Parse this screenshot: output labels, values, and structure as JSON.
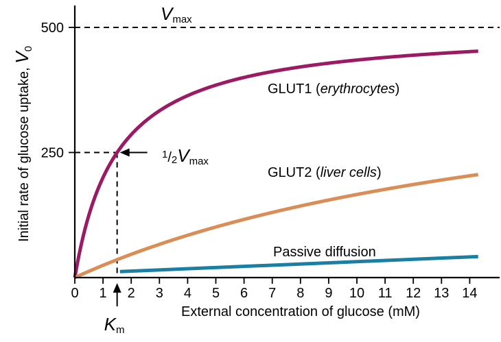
{
  "chart_data": {
    "type": "line",
    "title": "",
    "xlabel": "External concentration of glucose (mM)",
    "ylabel": {
      "main": "Initial rate of glucose uptake, ",
      "var": "V",
      "sub": "0"
    },
    "xlim": [
      0,
      14.6
    ],
    "ylim": [
      0,
      550
    ],
    "x_ticks": [
      0,
      1,
      2,
      3,
      4,
      5,
      6,
      7,
      8,
      9,
      10,
      11,
      12,
      13,
      14
    ],
    "y_ticks": [
      250,
      500
    ],
    "vmax": 500,
    "km": 1.5,
    "series": [
      {
        "name": "GLUT1",
        "label_main": "GLUT1 (",
        "label_italic": "erythrocytes",
        "label_close": ")",
        "kind": "michaelis-menten",
        "vmax": 500,
        "km": 1.5,
        "x_range": [
          0,
          14.3
        ],
        "color": "#9b1a64"
      },
      {
        "name": "GLUT2",
        "label_main": "GLUT2 (",
        "label_italic": "liver cells",
        "label_close": ")",
        "kind": "michaelis-menten",
        "vmax": 465,
        "km": 18,
        "x_range": [
          0,
          14.3
        ],
        "color": "#d98e57"
      },
      {
        "name": "Passive diffusion",
        "label_main": "Passive diffusion",
        "label_italic": "",
        "label_close": "",
        "kind": "linear",
        "points": [
          [
            1.6,
            12
          ],
          [
            14.3,
            42
          ]
        ],
        "color": "#1a7fa3"
      }
    ],
    "annotations": {
      "vmax_label": {
        "var": "V",
        "sub": "max"
      },
      "half_vmax_label": {
        "frac_num": "1",
        "frac_sep": "/",
        "frac_den": "2",
        "var": "V",
        "sub": "max"
      },
      "km_label": {
        "var": "K",
        "sub": "m"
      }
    }
  }
}
